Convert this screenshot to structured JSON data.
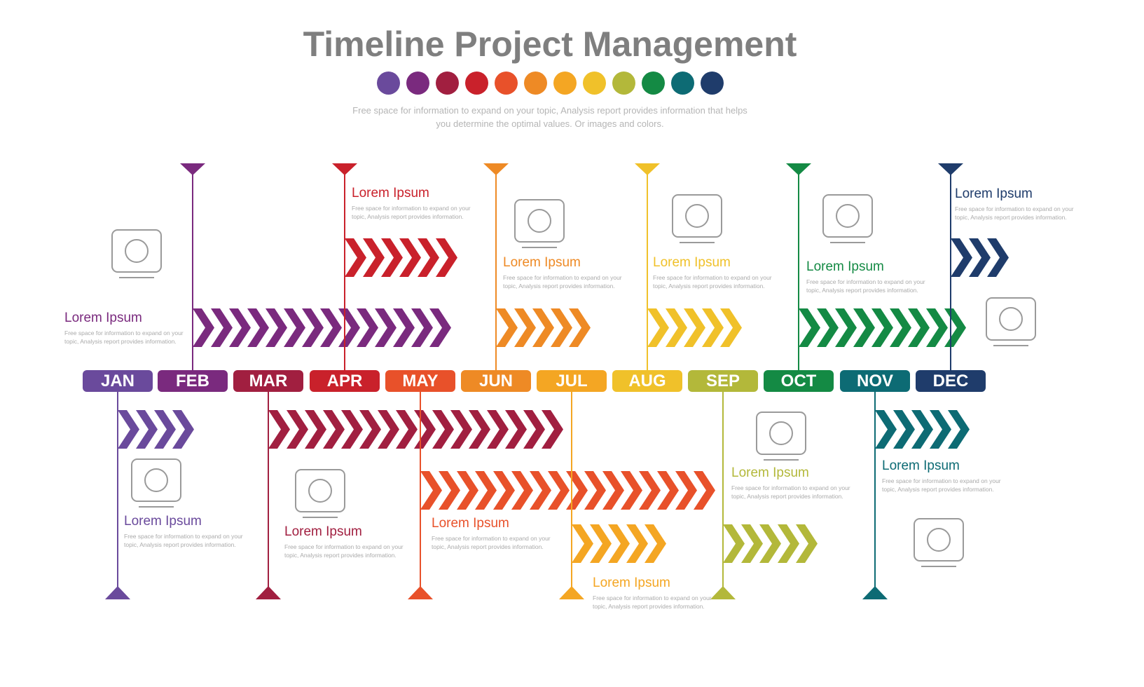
{
  "title": "Timeline Project Management",
  "subtitle": "Free space for information to expand on your topic, Analysis report provides information that helps you determine the optimal values. Or images and colors.",
  "palette": [
    "#6a4a9c",
    "#7a2a7e",
    "#a11f40",
    "#c9212b",
    "#e8512a",
    "#ee8a25",
    "#f4a623",
    "#f0c12a",
    "#b3b83a",
    "#148a44",
    "#0d6b74",
    "#1f3c6b"
  ],
  "months": [
    {
      "label": "JAN",
      "color": "#6a4a9c",
      "title": "Lorem Ipsum",
      "desc": "Free space for information to expand on your topic, Analysis report provides information.",
      "icon": "hand-gear-icon"
    },
    {
      "label": "FEB",
      "color": "#7a2a7e",
      "title": "Lorem Ipsum",
      "desc": "Free space for information to expand on your topic, Analysis report provides information.",
      "icon": "phone-dollar-icon"
    },
    {
      "label": "MAR",
      "color": "#a11f40",
      "title": "Lorem Ipsum",
      "desc": "Free space for information to expand on your topic, Analysis report provides information.",
      "icon": "dollar-cycle-icon"
    },
    {
      "label": "APR",
      "color": "#c9212b",
      "title": "Lorem Ipsum",
      "desc": "Free space for information to expand on your topic, Analysis report provides information.",
      "icon": ""
    },
    {
      "label": "MAY",
      "color": "#e8512a",
      "title": "Lorem Ipsum",
      "desc": "Free space for information to expand on your topic, Analysis report provides information.",
      "icon": ""
    },
    {
      "label": "JUN",
      "color": "#ee8a25",
      "title": "Lorem Ipsum",
      "desc": "Free space for information to expand on your topic, Analysis report provides information.",
      "icon": "money-stack-icon"
    },
    {
      "label": "JUL",
      "color": "#f4a623",
      "title": "Lorem Ipsum",
      "desc": "Free space for information to expand on your topic, Analysis report provides information.",
      "icon": ""
    },
    {
      "label": "AUG",
      "color": "#f0c12a",
      "title": "Lorem Ipsum",
      "desc": "Free space for information to expand on your topic, Analysis report provides information.",
      "icon": "tools-icon"
    },
    {
      "label": "SEP",
      "color": "#b3b83a",
      "title": "Lorem Ipsum",
      "desc": "Free space for information to expand on your topic, Analysis report provides information.",
      "icon": "tools-chat-icon"
    },
    {
      "label": "OCT",
      "color": "#148a44",
      "title": "Lorem Ipsum",
      "desc": "Free space for information to expand on your topic, Analysis report provides information.",
      "icon": "thumbs-up-icon"
    },
    {
      "label": "NOV",
      "color": "#0d6b74",
      "title": "Lorem Ipsum",
      "desc": "Free space for information to expand on your topic, Analysis report provides information.",
      "icon": "color-swatch-icon"
    },
    {
      "label": "DEC",
      "color": "#1f3c6b",
      "title": "Lorem Ipsum",
      "desc": "Free space for information to expand on your topic, Analysis report provides information.",
      "icon": "document-check-icon"
    }
  ]
}
